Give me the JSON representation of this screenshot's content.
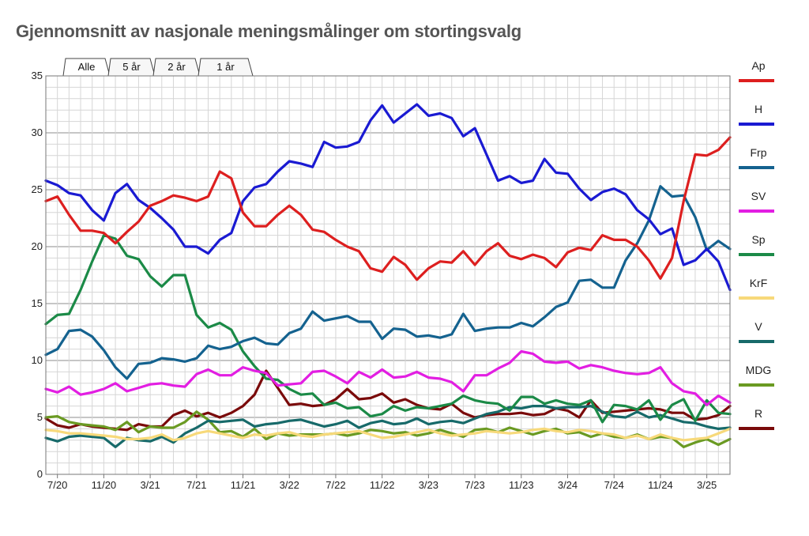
{
  "title": "Gjennomsnitt av nasjonale meningsmålinger om stortingsvalg",
  "tabs": [
    {
      "label": "Alle",
      "active": true
    },
    {
      "label": "5 år",
      "active": false
    },
    {
      "label": "2 år",
      "active": false
    },
    {
      "label": "1 år",
      "active": false
    }
  ],
  "chart_data": {
    "type": "line",
    "title": "Gjennomsnitt av nasjonale meningsmålinger om stortingsvalg",
    "xlabel": "",
    "ylabel": "",
    "ylim": [
      0,
      35
    ],
    "yticks": [
      0,
      5,
      10,
      15,
      20,
      25,
      30,
      35
    ],
    "x_start": "2020-06",
    "x_end": "2025-05",
    "xticks": [
      {
        "label": "7/20",
        "month": "2020-07"
      },
      {
        "label": "11/20",
        "month": "2020-11"
      },
      {
        "label": "3/21",
        "month": "2021-03"
      },
      {
        "label": "7/21",
        "month": "2021-07"
      },
      {
        "label": "11/21",
        "month": "2021-11"
      },
      {
        "label": "3/22",
        "month": "2022-03"
      },
      {
        "label": "7/22",
        "month": "2022-07"
      },
      {
        "label": "11/22",
        "month": "2022-11"
      },
      {
        "label": "3/23",
        "month": "2023-03"
      },
      {
        "label": "7/23",
        "month": "2023-07"
      },
      {
        "label": "11/23",
        "month": "2023-11"
      },
      {
        "label": "3/24",
        "month": "2024-03"
      },
      {
        "label": "7/24",
        "month": "2024-07"
      },
      {
        "label": "11/24",
        "month": "2024-11"
      },
      {
        "label": "3/25",
        "month": "2025-03"
      }
    ],
    "grid": true,
    "legend_position": "right",
    "series": [
      {
        "name": "Ap",
        "color": "#dd1f1f",
        "values": [
          24.0,
          24.4,
          22.8,
          21.4,
          21.4,
          21.2,
          20.3,
          21.3,
          22.2,
          23.6,
          24.0,
          24.5,
          24.3,
          24.0,
          24.4,
          26.6,
          26.0,
          23.0,
          21.8,
          21.8,
          22.8,
          23.6,
          22.8,
          21.5,
          21.3,
          20.6,
          20.0,
          19.6,
          18.1,
          17.8,
          19.1,
          18.4,
          17.1,
          18.1,
          18.7,
          18.6,
          19.6,
          18.4,
          19.6,
          20.3,
          19.2,
          18.9,
          19.3,
          19.0,
          18.2,
          19.5,
          19.9,
          19.7,
          21.0,
          20.6,
          20.6,
          20.0,
          18.8,
          17.2,
          19.0,
          24.0,
          28.1,
          28.0,
          28.5,
          29.6
        ]
      },
      {
        "name": "H",
        "color": "#1a1ad2",
        "values": [
          25.8,
          25.4,
          24.7,
          24.5,
          23.2,
          22.3,
          24.7,
          25.5,
          24.1,
          23.4,
          22.5,
          21.5,
          20.0,
          20.0,
          19.4,
          20.6,
          21.2,
          24.0,
          25.2,
          25.5,
          26.6,
          27.5,
          27.3,
          27.0,
          29.2,
          28.7,
          28.8,
          29.2,
          31.1,
          32.4,
          30.9,
          31.7,
          32.5,
          31.5,
          31.7,
          31.3,
          29.7,
          30.4,
          28.1,
          25.8,
          26.2,
          25.6,
          25.8,
          27.7,
          26.5,
          26.4,
          25.1,
          24.1,
          24.8,
          25.1,
          24.6,
          23.2,
          22.4,
          21.1,
          21.6,
          18.4,
          18.8,
          19.8,
          18.7,
          16.2
        ]
      },
      {
        "name": "Frp",
        "color": "#14628f",
        "values": [
          10.5,
          11.0,
          12.6,
          12.7,
          12.1,
          10.9,
          9.4,
          8.4,
          9.7,
          9.8,
          10.2,
          10.1,
          9.9,
          10.2,
          11.3,
          11.0,
          11.2,
          11.7,
          12.0,
          11.5,
          11.4,
          12.4,
          12.8,
          14.3,
          13.5,
          13.7,
          13.9,
          13.4,
          13.4,
          11.9,
          12.8,
          12.7,
          12.1,
          12.2,
          12.0,
          12.3,
          14.1,
          12.6,
          12.8,
          12.9,
          12.9,
          13.3,
          13.0,
          13.8,
          14.7,
          15.1,
          17.0,
          17.1,
          16.4,
          16.4,
          18.8,
          20.3,
          22.3,
          25.3,
          24.4,
          24.5,
          22.6,
          19.7,
          20.5,
          19.8
        ]
      },
      {
        "name": "SV",
        "color": "#e21ee2",
        "values": [
          7.5,
          7.2,
          7.7,
          7.0,
          7.2,
          7.5,
          8.0,
          7.3,
          7.6,
          7.9,
          8.0,
          7.8,
          7.7,
          8.8,
          9.2,
          8.7,
          8.7,
          9.4,
          9.1,
          8.9,
          7.8,
          7.9,
          8.0,
          9.0,
          9.1,
          8.6,
          8.0,
          9.0,
          8.5,
          9.2,
          8.5,
          8.6,
          9.0,
          8.5,
          8.4,
          8.1,
          7.3,
          8.7,
          8.7,
          9.3,
          9.8,
          10.8,
          10.6,
          9.9,
          9.8,
          9.9,
          9.3,
          9.6,
          9.4,
          9.1,
          8.9,
          8.8,
          8.9,
          9.4,
          8.0,
          7.3,
          7.1,
          6.1,
          6.9,
          6.3
        ]
      },
      {
        "name": "Sp",
        "color": "#1b8a47",
        "values": [
          13.2,
          14.0,
          14.1,
          16.2,
          18.7,
          21.0,
          20.7,
          19.2,
          18.9,
          17.4,
          16.5,
          17.5,
          17.5,
          14.0,
          12.9,
          13.3,
          12.7,
          10.8,
          9.5,
          8.4,
          8.3,
          7.5,
          7.0,
          7.1,
          6.1,
          6.3,
          5.8,
          5.9,
          5.1,
          5.3,
          6.0,
          5.6,
          5.9,
          5.8,
          6.0,
          6.2,
          6.9,
          6.5,
          6.3,
          6.2,
          5.6,
          6.8,
          6.8,
          6.2,
          6.5,
          6.2,
          6.1,
          6.5,
          4.6,
          6.1,
          6.0,
          5.7,
          6.5,
          4.8,
          6.1,
          6.6,
          4.7,
          6.5,
          5.4,
          5.3
        ]
      },
      {
        "name": "KrF",
        "color": "#f7d97a",
        "values": [
          3.9,
          3.8,
          3.6,
          3.6,
          3.5,
          3.4,
          3.3,
          3.1,
          3.1,
          3.2,
          3.5,
          3.0,
          3.2,
          3.6,
          3.8,
          3.6,
          3.4,
          3.2,
          3.5,
          3.4,
          3.6,
          3.7,
          3.4,
          3.3,
          3.5,
          3.6,
          3.7,
          3.8,
          3.5,
          3.2,
          3.3,
          3.5,
          3.7,
          3.9,
          3.6,
          3.4,
          3.5,
          3.6,
          3.8,
          3.7,
          3.6,
          3.7,
          3.9,
          4.0,
          3.8,
          3.7,
          3.9,
          3.8,
          3.6,
          3.5,
          3.2,
          3.4,
          3.1,
          3.5,
          3.2,
          3.0,
          3.1,
          3.2,
          3.6,
          4.0
        ]
      },
      {
        "name": "V",
        "color": "#176a6a",
        "values": [
          3.2,
          2.9,
          3.3,
          3.4,
          3.3,
          3.2,
          2.4,
          3.2,
          3.0,
          2.9,
          3.3,
          2.8,
          3.6,
          4.1,
          4.7,
          4.6,
          4.7,
          4.8,
          4.2,
          4.4,
          4.5,
          4.7,
          4.8,
          4.5,
          4.2,
          4.4,
          4.7,
          4.1,
          4.5,
          4.7,
          4.4,
          4.5,
          4.9,
          4.4,
          4.6,
          4.7,
          4.5,
          4.9,
          5.3,
          5.5,
          5.9,
          5.8,
          6.0,
          6.0,
          5.8,
          5.9,
          5.9,
          6.0,
          5.5,
          5.1,
          5.0,
          5.5,
          5.0,
          5.2,
          4.9,
          4.6,
          4.5,
          4.2,
          4.0,
          4.1
        ]
      },
      {
        "name": "MDG",
        "color": "#6a9a22",
        "values": [
          5.0,
          5.1,
          4.6,
          4.4,
          4.3,
          4.2,
          3.9,
          4.6,
          3.7,
          4.2,
          4.1,
          4.1,
          4.6,
          5.5,
          4.8,
          3.7,
          3.8,
          3.3,
          4.0,
          3.1,
          3.6,
          3.4,
          3.5,
          3.5,
          3.5,
          3.6,
          3.4,
          3.6,
          3.9,
          3.8,
          3.6,
          3.7,
          3.4,
          3.6,
          3.9,
          3.6,
          3.3,
          3.9,
          4.0,
          3.7,
          4.1,
          3.8,
          3.5,
          3.8,
          4.0,
          3.6,
          3.7,
          3.3,
          3.6,
          3.3,
          3.2,
          3.5,
          3.1,
          3.3,
          3.2,
          2.4,
          2.8,
          3.1,
          2.6,
          3.1
        ]
      },
      {
        "name": "R",
        "color": "#7a0a0a",
        "values": [
          4.9,
          4.3,
          4.1,
          4.4,
          4.2,
          4.1,
          4.0,
          3.9,
          4.4,
          4.2,
          4.2,
          5.2,
          5.6,
          5.1,
          5.4,
          5.0,
          5.4,
          6.0,
          7.0,
          9.1,
          7.6,
          6.1,
          6.2,
          6.0,
          6.1,
          6.6,
          7.5,
          6.6,
          6.7,
          7.1,
          6.3,
          6.6,
          6.1,
          5.8,
          5.7,
          6.2,
          5.4,
          5.0,
          5.2,
          5.3,
          5.3,
          5.4,
          5.2,
          5.3,
          5.8,
          5.6,
          5.0,
          6.5,
          5.4,
          5.5,
          5.6,
          5.7,
          5.8,
          5.7,
          5.4,
          5.4,
          4.8,
          4.9,
          5.2,
          6.0
        ]
      }
    ]
  }
}
